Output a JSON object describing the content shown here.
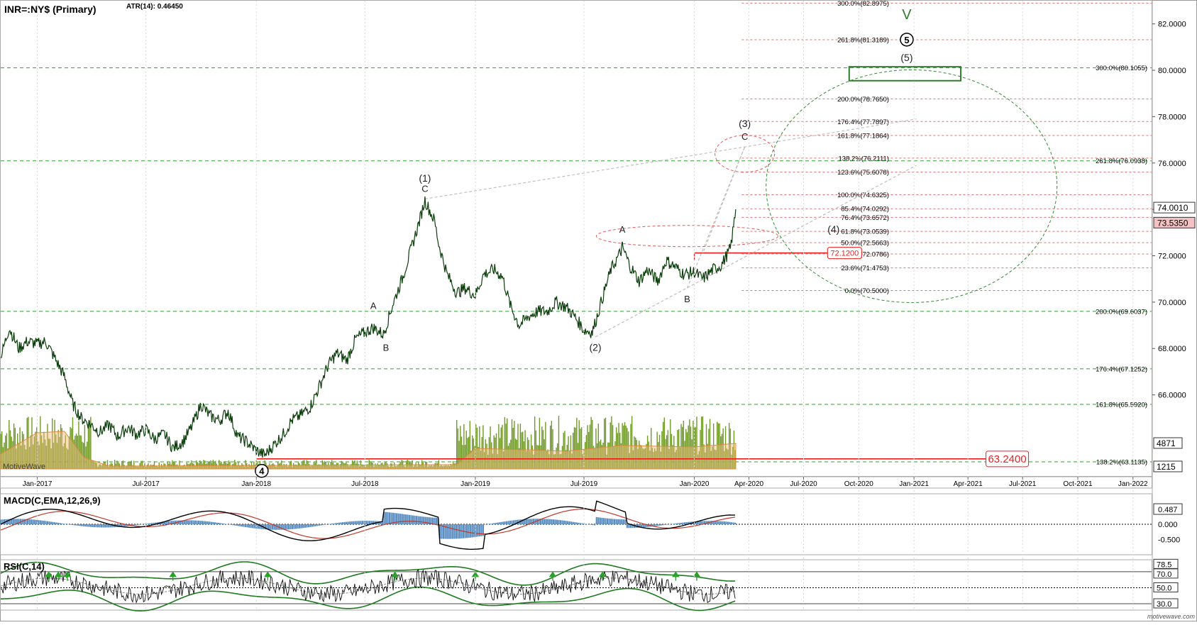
{
  "header": {
    "symbol": "INR=:NY$ (Primary)",
    "indicator": "ATR(14): 0.46450"
  },
  "watermark": "MotiveWave",
  "brand": "motivewave.com",
  "colors": {
    "price": "#0b3d0b",
    "green_dash": "#2ca02c",
    "red_dash": "#e07070",
    "support": "#ee1c1c",
    "volume": "#6f9a24",
    "macd_line": "#000000",
    "macd_signal": "#c0392b",
    "macd_hist": "#5b8fc2",
    "rsi_band": "#1e7a1e",
    "last_up": "#f4c2c2"
  },
  "x_axis": {
    "labels": [
      "Jan-2017",
      "Jul-2017",
      "Jan-2018",
      "Jul-2018",
      "Jan-2019",
      "Jul-2019",
      "Jan-2020",
      "Apr-2020",
      "Jul-2020",
      "Oct-2020",
      "Jan-2021",
      "Apr-2021",
      "Jul-2021",
      "Oct-2021",
      "Jan-2022"
    ]
  },
  "chart_data": [
    {
      "type": "line",
      "name": "price",
      "ylim": [
        62.5,
        83
      ],
      "y_ticks": [
        "82.0000",
        "80.0000",
        "78.0000",
        "76.0000",
        "74.0000",
        "72.0000",
        "70.0000",
        "68.0000",
        "66.0000"
      ],
      "x_start": "2016-11",
      "x_end": "2022-02",
      "points": [
        [
          "2016-11",
          67.6
        ],
        [
          "2016-11-15",
          68.9
        ],
        [
          "2016-12",
          68.0
        ],
        [
          "2016-12-15",
          68.3
        ],
        [
          "2017-01",
          68.2
        ],
        [
          "2017-01-15",
          68.3
        ],
        [
          "2017-02",
          67.5
        ],
        [
          "2017-02-15",
          66.8
        ],
        [
          "2017-03",
          65.6
        ],
        [
          "2017-03-15",
          65.0
        ],
        [
          "2017-04",
          64.7
        ],
        [
          "2017-04-15",
          64.4
        ],
        [
          "2017-05",
          64.7
        ],
        [
          "2017-05-15",
          64.2
        ],
        [
          "2017-06",
          64.6
        ],
        [
          "2017-06-15",
          64.3
        ],
        [
          "2017-07",
          64.5
        ],
        [
          "2017-07-15",
          64.1
        ],
        [
          "2017-08",
          64.3
        ],
        [
          "2017-08-15",
          63.7
        ],
        [
          "2017-09",
          64.0
        ],
        [
          "2017-09-15",
          64.6
        ],
        [
          "2017-10",
          65.6
        ],
        [
          "2017-10-15",
          65.1
        ],
        [
          "2017-11",
          64.9
        ],
        [
          "2017-11-15",
          65.3
        ],
        [
          "2017-12",
          64.2
        ],
        [
          "2017-12-15",
          64.0
        ],
        [
          "2018-01",
          63.6
        ],
        [
          "2018-01-15",
          63.4
        ],
        [
          "2018-02",
          63.9
        ],
        [
          "2018-02-15",
          64.3
        ],
        [
          "2018-03",
          64.9
        ],
        [
          "2018-03-15",
          65.1
        ],
        [
          "2018-04",
          65.5
        ],
        [
          "2018-04-15",
          66.3
        ],
        [
          "2018-05",
          67.3
        ],
        [
          "2018-05-15",
          67.8
        ],
        [
          "2018-06",
          67.5
        ],
        [
          "2018-06-15",
          68.4
        ],
        [
          "2018-07",
          68.7
        ],
        [
          "2018-07-15",
          68.9
        ],
        [
          "2018-08",
          68.6
        ],
        [
          "2018-08-15",
          69.8
        ],
        [
          "2018-09",
          71.0
        ],
        [
          "2018-09-15",
          72.2
        ],
        [
          "2018-10",
          73.6
        ],
        [
          "2018-10-09",
          74.4
        ],
        [
          "2018-10-25",
          73.5
        ],
        [
          "2018-11",
          72.5
        ],
        [
          "2018-11-15",
          71.2
        ],
        [
          "2018-12",
          70.4
        ],
        [
          "2018-12-15",
          70.6
        ],
        [
          "2019-01",
          70.3
        ],
        [
          "2019-01-15",
          71.2
        ],
        [
          "2019-02",
          71.4
        ],
        [
          "2019-02-15",
          71.1
        ],
        [
          "2019-03",
          69.8
        ],
        [
          "2019-03-15",
          69.0
        ],
        [
          "2019-04",
          69.4
        ],
        [
          "2019-04-15",
          69.6
        ],
        [
          "2019-05",
          69.6
        ],
        [
          "2019-05-15",
          70.0
        ],
        [
          "2019-06",
          69.8
        ],
        [
          "2019-06-15",
          69.4
        ],
        [
          "2019-07",
          68.8
        ],
        [
          "2019-07-15",
          68.7
        ],
        [
          "2019-08",
          70.2
        ],
        [
          "2019-08-15",
          71.4
        ],
        [
          "2019-09",
          72.2
        ],
        [
          "2019-09-03",
          72.4
        ],
        [
          "2019-09-15",
          71.6
        ],
        [
          "2019-10",
          70.9
        ],
        [
          "2019-10-15",
          71.4
        ],
        [
          "2019-11",
          70.9
        ],
        [
          "2019-11-15",
          71.8
        ],
        [
          "2019-12",
          71.5
        ],
        [
          "2019-12-15",
          71.2
        ],
        [
          "2020-01",
          71.3
        ],
        [
          "2020-01-15",
          71.0
        ],
        [
          "2020-02",
          71.4
        ],
        [
          "2020-02-15",
          71.6
        ],
        [
          "2020-03",
          72.3
        ],
        [
          "2020-03-05",
          73.0
        ],
        [
          "2020-03-10",
          74.0
        ]
      ],
      "last_price": "74.0010",
      "last_price_prev": "73.5350",
      "volume_axis": [
        "4871",
        "1215"
      ]
    },
    {
      "type": "line",
      "name": "MACD(C,EMA,12,26,9)",
      "ylim": [
        -1.0,
        1.0
      ],
      "y_ticks": [
        "0.487",
        "0.000",
        "-0.500"
      ]
    },
    {
      "type": "line",
      "name": "RSI(C,14)",
      "ylim": [
        22,
        85
      ],
      "y_ticks": [
        "78.5",
        "70.0",
        "50.0",
        "30.0"
      ]
    }
  ],
  "fib_levels_right": [
    {
      "label": "300.0%(82.8975)",
      "y": 82.8975,
      "style": "red"
    },
    {
      "label": "261.8%(81.3189)",
      "y": 81.3189,
      "style": "red"
    },
    {
      "label": "300.0%(80.1055)",
      "y": 80.1055,
      "style": "green"
    },
    {
      "label": "200.0%(78.7650)",
      "y": 78.765,
      "style": "red"
    },
    {
      "label": "176.4%(77.7897)",
      "y": 77.7897,
      "style": "red"
    },
    {
      "label": "161.8%(77.1864)",
      "y": 77.1864,
      "style": "red"
    },
    {
      "label": "138.2%(76.2111)",
      "y": 76.2111,
      "style": "red"
    },
    {
      "label": "261.8%(76.0938)",
      "y": 76.0938,
      "style": "green"
    },
    {
      "label": "123.6%(75.6078)",
      "y": 75.6078,
      "style": "red"
    },
    {
      "label": "100.0%(74.6325)",
      "y": 74.6325,
      "style": "red"
    },
    {
      "label": "85.4%(74.0292)",
      "y": 74.0292,
      "style": "red"
    },
    {
      "label": "76.4%(73.6572)",
      "y": 73.6572,
      "style": "red"
    },
    {
      "label": "61.8%(73.0539)",
      "y": 73.0539,
      "style": "red"
    },
    {
      "label": "50.0%(72.5663)",
      "y": 72.5663,
      "style": "red"
    },
    {
      "label": "38.2%(72.0786)",
      "y": 72.0786,
      "style": "red"
    },
    {
      "label": "23.6%(71.4753)",
      "y": 71.4753,
      "style": "red"
    },
    {
      "label": "0.0%(70.5000)",
      "y": 70.5,
      "style": "red"
    },
    {
      "label": "200.0%(69.6037)",
      "y": 69.6037,
      "style": "green"
    },
    {
      "label": "176.4%(67.1252)",
      "y": 67.1252,
      "style": "green"
    },
    {
      "label": "161.8%(65.5920)",
      "y": 65.592,
      "style": "green"
    },
    {
      "label": "138.2%(63.1135)",
      "y": 63.1135,
      "style": "green"
    }
  ],
  "support_lines": [
    {
      "label": "72.1200",
      "y": 72.12,
      "from": "2020-01-01",
      "to": "2020-08-10"
    },
    {
      "label": "63.2400",
      "y": 63.24,
      "from": "2018-01-01",
      "to": "2021-05-01"
    }
  ],
  "wave_labels": [
    {
      "text": "(1)",
      "x": "2018-10-09",
      "y": 75.2,
      "style": "paren"
    },
    {
      "text": "C",
      "x": "2018-10-09",
      "y": 74.75,
      "style": "plain"
    },
    {
      "text": "A",
      "x": "2018-07-15",
      "y": 69.7,
      "style": "plain"
    },
    {
      "text": "B",
      "x": "2018-08-05",
      "y": 67.9,
      "style": "plain"
    },
    {
      "text": "(2)",
      "x": "2019-07-20",
      "y": 67.9,
      "style": "paren"
    },
    {
      "text": "A",
      "x": "2019-09-03",
      "y": 73.0,
      "style": "plain"
    },
    {
      "text": "B",
      "x": "2019-12-20",
      "y": 70.0,
      "style": "plain"
    },
    {
      "text": "(3)",
      "x": "2020-03-25",
      "y": 77.55,
      "style": "paren"
    },
    {
      "text": "C",
      "x": "2020-03-25",
      "y": 77.0,
      "style": "plain"
    },
    {
      "text": "(4)",
      "x": "2020-08-20",
      "y": 73.0,
      "style": "paren"
    },
    {
      "text": "(5)",
      "x": "2020-12-20",
      "y": 80.4,
      "style": "paren"
    },
    {
      "text": "5",
      "x": "2020-12-20",
      "y": 81.2,
      "style": "circled"
    },
    {
      "text": "V",
      "x": "2020-12-20",
      "y": 82.2,
      "style": "green-big"
    },
    {
      "text": "4",
      "x": "2018-01-10",
      "y": 62.6,
      "style": "circled"
    }
  ]
}
